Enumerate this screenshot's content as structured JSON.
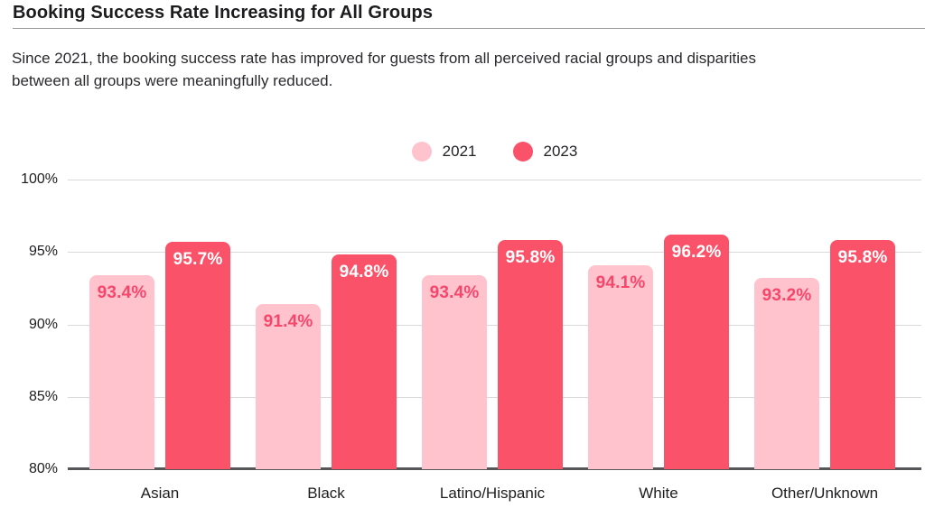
{
  "header": {
    "title": "Booking Success Rate Increasing for All Groups",
    "subtitle_lines": [
      "Since 2021, the booking success rate has improved for guests from all perceived racial groups and disparities",
      "between all groups were meaningfully reduced."
    ]
  },
  "legend": {
    "items": [
      {
        "label": "2021",
        "color": "#FFC3CD"
      },
      {
        "label": "2023",
        "color": "#FA5268"
      }
    ]
  },
  "chart_data": {
    "type": "bar",
    "title": "Booking Success Rate Increasing for All Groups",
    "categories": [
      "Asian",
      "Black",
      "Latino/Hispanic",
      "White",
      "Other/Unknown"
    ],
    "series": [
      {
        "name": "2021",
        "color": "#FFC3CD",
        "label_color": "#F8466B",
        "values": [
          93.4,
          91.4,
          93.4,
          94.1,
          93.2
        ]
      },
      {
        "name": "2023",
        "color": "#FA5268",
        "label_color": "#FFFFFF",
        "values": [
          95.7,
          94.8,
          95.8,
          96.2,
          95.8
        ]
      }
    ],
    "value_suffix": "%",
    "xlabel": "",
    "ylabel": "",
    "ylim": [
      80,
      100
    ],
    "y_ticks": [
      100,
      95,
      90,
      85,
      80
    ],
    "y_tick_suffix": "%",
    "grid": true,
    "legend_position": "top-center",
    "colors": {
      "gridline": "#d9d9d9",
      "axis": "#55565a",
      "background": "#ffffff"
    }
  }
}
